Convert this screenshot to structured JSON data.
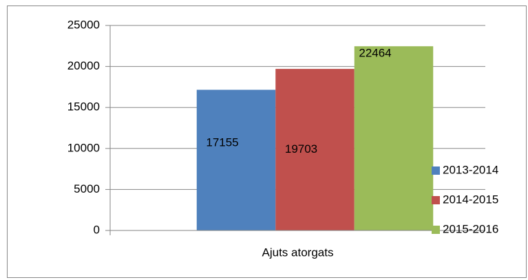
{
  "chart_data": {
    "type": "bar",
    "categories": [
      "Ajuts atorgats"
    ],
    "series": [
      {
        "name": "2013-2014",
        "color": "#4f81bd",
        "values": [
          17155
        ]
      },
      {
        "name": "2014-2015",
        "color": "#c0504d",
        "values": [
          19703
        ]
      },
      {
        "name": "2015-2016",
        "color": "#9bbb59",
        "values": [
          22464
        ]
      }
    ],
    "ylim": [
      0,
      25000
    ],
    "yticks": [
      0,
      5000,
      10000,
      15000,
      20000,
      25000
    ],
    "grid": true,
    "legend": "right",
    "data_labels": true
  }
}
